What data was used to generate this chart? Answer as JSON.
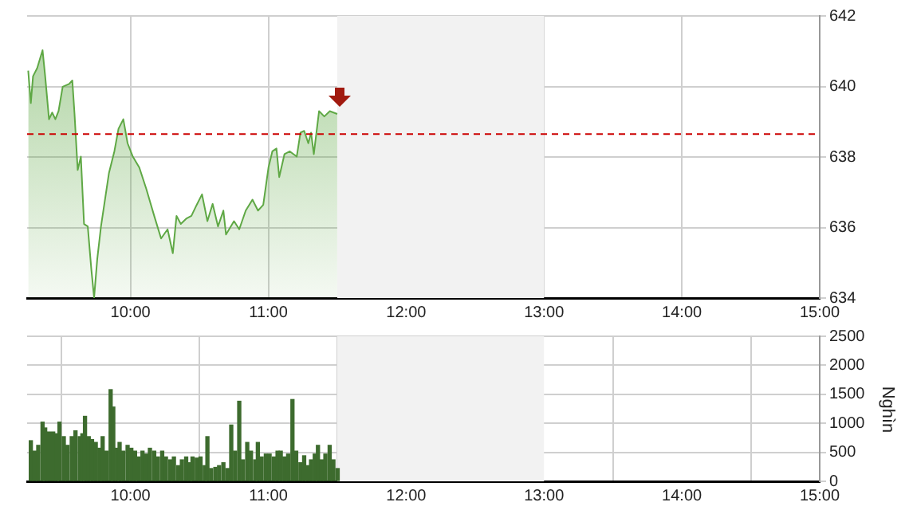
{
  "chart_data": [
    {
      "type": "area",
      "x": [
        9.258,
        9.277,
        9.293,
        9.323,
        9.362,
        9.381,
        9.409,
        9.432,
        9.455,
        9.478,
        9.508,
        9.554,
        9.578,
        9.594,
        9.617,
        9.64,
        9.663,
        9.69,
        9.716,
        9.736,
        9.759,
        9.786,
        9.844,
        9.883,
        9.913,
        9.948,
        9.979,
        10.017,
        10.064,
        10.115,
        10.172,
        10.222,
        10.269,
        10.307,
        10.334,
        10.365,
        10.404,
        10.442,
        10.48,
        10.519,
        10.558,
        10.596,
        10.635,
        10.674,
        10.693,
        10.751,
        10.789,
        10.836,
        10.885,
        10.925,
        10.963,
        11.001,
        11.029,
        11.059,
        11.079,
        11.117,
        11.156,
        11.206,
        11.233,
        11.26,
        11.29,
        11.31,
        11.33,
        11.368,
        11.406,
        11.446,
        11.5
      ],
      "series": [
        {
          "color": "#5fa845",
          "values": [
            640.45,
            639.53,
            640.29,
            640.52,
            641.03,
            640.29,
            639.07,
            639.26,
            639.07,
            639.3,
            639.99,
            640.07,
            640.17,
            639.22,
            637.63,
            638.01,
            636.1,
            636.03,
            634.81,
            634.01,
            635.11,
            636.03,
            637.55,
            638.16,
            638.8,
            639.07,
            638.39,
            638.01,
            637.7,
            637.09,
            636.33,
            635.69,
            635.95,
            635.27,
            636.33,
            636.1,
            636.25,
            636.33,
            636.64,
            636.94,
            636.18,
            636.67,
            636.03,
            636.48,
            635.8,
            636.18,
            635.95,
            636.48,
            636.79,
            636.48,
            636.64,
            637.7,
            638.16,
            638.24,
            637.43,
            638.08,
            638.16,
            638.01,
            638.69,
            638.74,
            638.39,
            638.69,
            638.08,
            639.3,
            639.15,
            639.3,
            639.22
          ]
        }
      ],
      "xlim": [
        9.25,
        15
      ],
      "xticks": [
        {
          "value": 10,
          "label": "10:00"
        },
        {
          "value": 11,
          "label": "11:00"
        },
        {
          "value": 12,
          "label": "12:00"
        },
        {
          "value": 13,
          "label": "13:00"
        },
        {
          "value": 14,
          "label": "14:00"
        },
        {
          "value": 15,
          "label": "15:00"
        }
      ],
      "ylim": [
        634,
        642
      ],
      "yticks": [
        634,
        636,
        638,
        640,
        642
      ],
      "grid": true,
      "legend": false,
      "ref_lines": [
        {
          "axis": "y",
          "value": 638.67,
          "color": "#cc0000",
          "line_style": "dashed"
        }
      ],
      "bands": [
        {
          "axis": "x",
          "from": 11.5,
          "to": 13,
          "color": "#f2f2f2"
        }
      ]
    },
    {
      "type": "bar",
      "ylabel": "Nghìn",
      "x": [
        9.277,
        9.304,
        9.331,
        9.362,
        9.381,
        9.408,
        9.439,
        9.466,
        9.485,
        9.516,
        9.543,
        9.574,
        9.601,
        9.632,
        9.651,
        9.67,
        9.697,
        9.721,
        9.748,
        9.775,
        9.798,
        9.825,
        9.856,
        9.875,
        9.902,
        9.921,
        9.948,
        9.979,
        10.006,
        10.033,
        10.056,
        10.087,
        10.114,
        10.141,
        10.172,
        10.199,
        10.23,
        10.257,
        10.288,
        10.315,
        10.346,
        10.373,
        10.404,
        10.431,
        10.45,
        10.481,
        10.508,
        10.539,
        10.558,
        10.585,
        10.616,
        10.643,
        10.674,
        10.704,
        10.731,
        10.759,
        10.789,
        10.816,
        10.847,
        10.874,
        10.905,
        10.924,
        10.951,
        10.982,
        11.009,
        11.04,
        11.067,
        11.09,
        11.117,
        11.144,
        11.175,
        11.202,
        11.233,
        11.26,
        11.283,
        11.31,
        11.337,
        11.36,
        11.387,
        11.414,
        11.445,
        11.472,
        11.503
      ],
      "series": [
        {
          "color": "#3d6b2e",
          "values": [
            700,
            520,
            620,
            1020,
            920,
            850,
            850,
            820,
            1020,
            770,
            620,
            770,
            870,
            770,
            820,
            1120,
            770,
            720,
            670,
            570,
            770,
            520,
            1580,
            1280,
            570,
            670,
            520,
            620,
            570,
            520,
            420,
            520,
            470,
            570,
            520,
            420,
            520,
            420,
            370,
            420,
            270,
            370,
            420,
            320,
            420,
            400,
            420,
            270,
            770,
            220,
            240,
            270,
            320,
            220,
            970,
            520,
            1380,
            370,
            670,
            520,
            370,
            670,
            420,
            470,
            470,
            420,
            520,
            520,
            420,
            470,
            1410,
            520,
            320,
            440,
            270,
            370,
            470,
            620,
            370,
            470,
            620,
            370,
            220
          ]
        }
      ],
      "xlim": [
        9.25,
        15
      ],
      "xticks": [
        {
          "value": 10,
          "label": "10:00"
        },
        {
          "value": 11,
          "label": "11:00"
        },
        {
          "value": 12,
          "label": "12:00"
        },
        {
          "value": 13,
          "label": "13:00"
        },
        {
          "value": 14,
          "label": "14:00"
        },
        {
          "value": 15,
          "label": "15:00"
        }
      ],
      "ylim": [
        0,
        2500
      ],
      "yticks": [
        0,
        500,
        1000,
        1500,
        2000,
        2500
      ],
      "grid": true,
      "legend": false,
      "bands": [
        {
          "axis": "x",
          "from": 11.5,
          "to": 13,
          "color": "#f2f2f2"
        }
      ]
    }
  ]
}
